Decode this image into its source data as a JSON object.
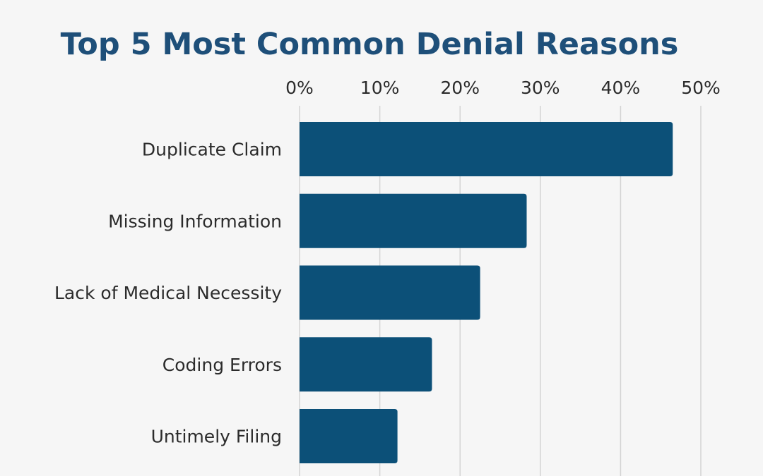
{
  "chart_data": {
    "type": "bar",
    "orientation": "horizontal",
    "title": "Top 5 Most Common Denial Reasons",
    "xlabel": "",
    "ylabel": "",
    "categories": [
      "Duplicate Claim",
      "Missing Information",
      "Lack of Medical Necessity",
      "Coding Errors",
      "Untimely Filing"
    ],
    "values": [
      46.5,
      28.3,
      22.5,
      16.5,
      12.2
    ],
    "xlim": [
      0,
      50
    ],
    "x_ticks": [
      0,
      10,
      20,
      30,
      40,
      50
    ],
    "x_tick_labels": [
      "0%",
      "10%",
      "20%",
      "30%",
      "40%",
      "50%"
    ],
    "x_axis_position": "top",
    "grid": "vertical",
    "legend": "none"
  },
  "colors": {
    "background": "#f6f6f6",
    "title": "#1e4f79",
    "bar": "#0c5078",
    "grid": "#d4d4d4",
    "text": "#2b2b2b"
  }
}
